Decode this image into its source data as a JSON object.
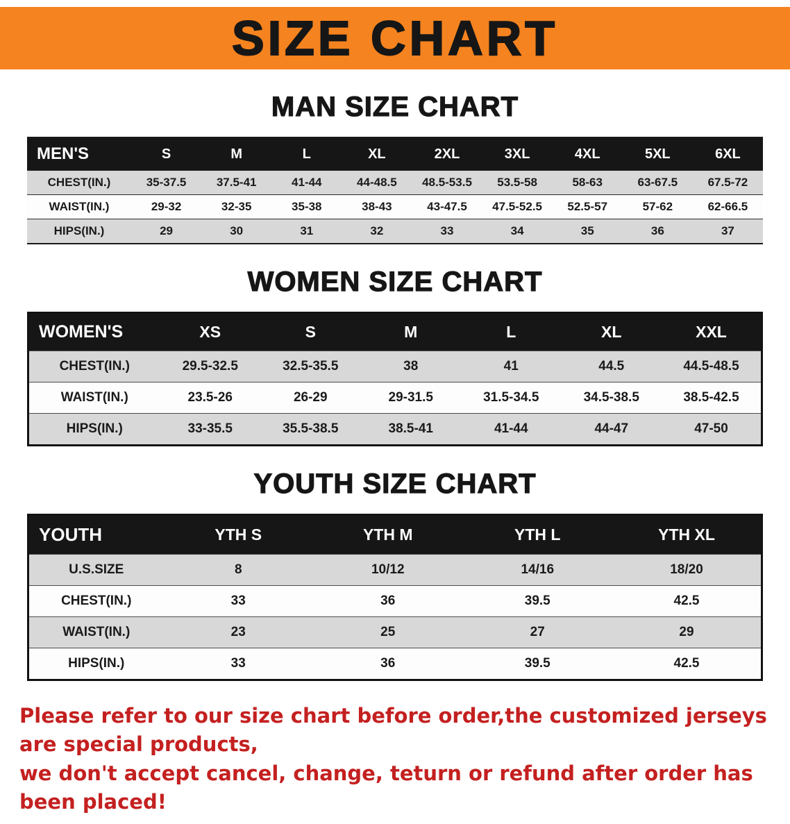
{
  "banner": {
    "title": "SIZE CHART",
    "bg_color": "#F5831F"
  },
  "men": {
    "heading": "MAN SIZE CHART",
    "table": {
      "header": [
        "MEN'S",
        "S",
        "M",
        "L",
        "XL",
        "2XL",
        "3XL",
        "4XL",
        "5XL",
        "6XL"
      ],
      "rows": [
        [
          "CHEST(IN.)",
          "35-37.5",
          "37.5-41",
          "41-44",
          "44-48.5",
          "48.5-53.5",
          "53.5-58",
          "58-63",
          "63-67.5",
          "67.5-72"
        ],
        [
          "WAIST(IN.)",
          "29-32",
          "32-35",
          "35-38",
          "38-43",
          "43-47.5",
          "47.5-52.5",
          "52.5-57",
          "57-62",
          "62-66.5"
        ],
        [
          "HIPS(IN.)",
          "29",
          "30",
          "31",
          "32",
          "33",
          "34",
          "35",
          "36",
          "37"
        ]
      ]
    }
  },
  "women": {
    "heading": "WOMEN SIZE CHART",
    "table": {
      "header": [
        "WOMEN'S",
        "XS",
        "S",
        "M",
        "L",
        "XL",
        "XXL"
      ],
      "rows": [
        [
          "CHEST(IN.)",
          "29.5-32.5",
          "32.5-35.5",
          "38",
          "41",
          "44.5",
          "44.5-48.5"
        ],
        [
          "WAIST(IN.)",
          "23.5-26",
          "26-29",
          "29-31.5",
          "31.5-34.5",
          "34.5-38.5",
          "38.5-42.5"
        ],
        [
          "HIPS(IN.)",
          "33-35.5",
          "35.5-38.5",
          "38.5-41",
          "41-44",
          "44-47",
          "47-50"
        ]
      ]
    }
  },
  "youth": {
    "heading": "YOUTH SIZE CHART",
    "table": {
      "header": [
        "YOUTH",
        "YTH S",
        "YTH M",
        "YTH L",
        "YTH XL"
      ],
      "rows": [
        [
          "U.S.SIZE",
          "8",
          "10/12",
          "14/16",
          "18/20"
        ],
        [
          "CHEST(IN.)",
          "33",
          "36",
          "39.5",
          "42.5"
        ],
        [
          "WAIST(IN.)",
          "23",
          "25",
          "27",
          "29"
        ],
        [
          "HIPS(IN.)",
          "33",
          "36",
          "39.5",
          "42.5"
        ]
      ]
    }
  },
  "disclaimer": {
    "line1": "Please refer to our size chart before order,the customized jerseys are special products,",
    "line2": "we don't accept cancel, change, teturn or refund after order has been placed!",
    "color": "#C42020"
  },
  "colors": {
    "banner_bg": "#F5831F",
    "table_header_bg": "#161616",
    "row_stripe": "#D8D8D8",
    "disclaimer_text": "#C42020"
  }
}
